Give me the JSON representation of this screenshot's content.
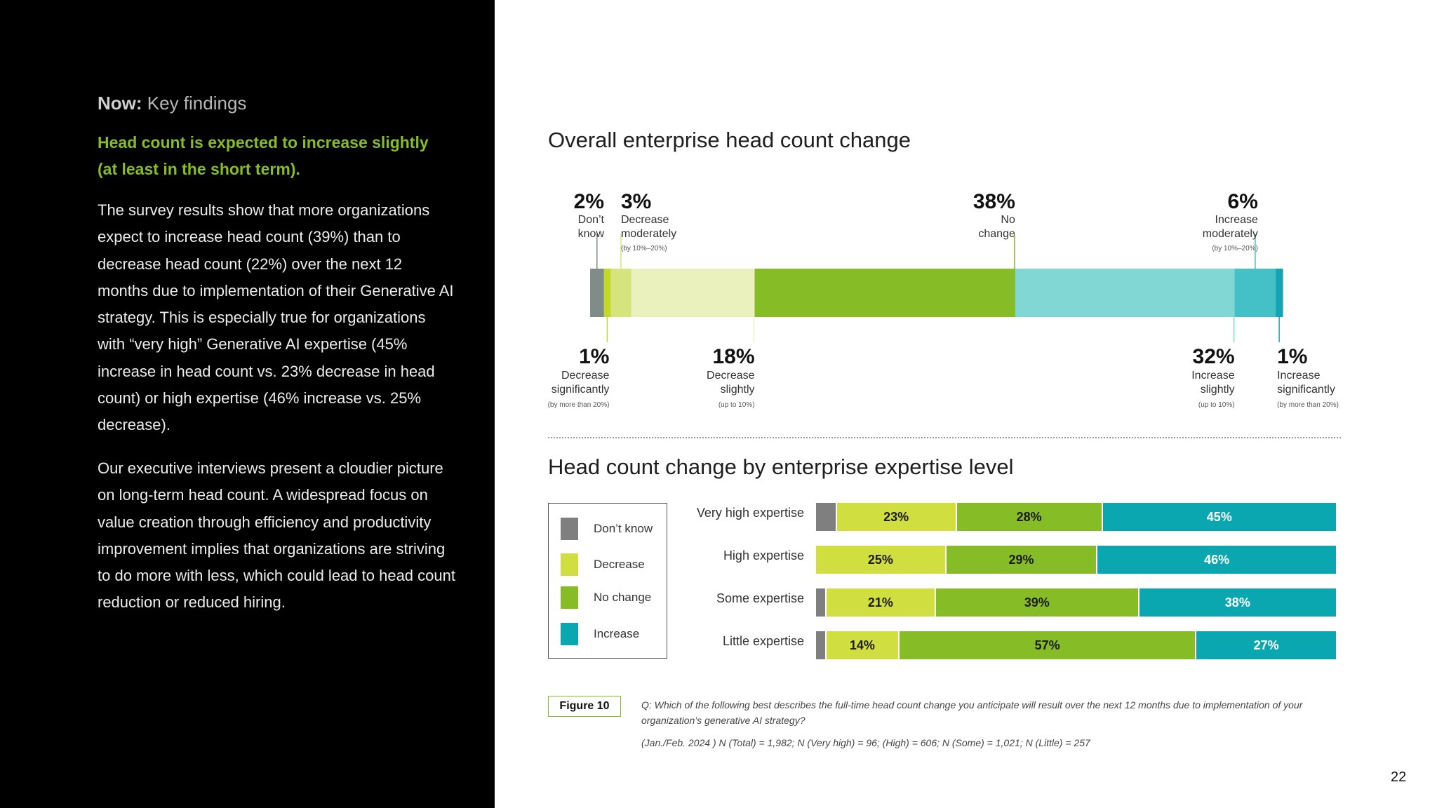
{
  "left_panel": {
    "kicker_bold": "Now:",
    "kicker_rest": " Key findings",
    "headline": "Head count is expected to increase slightly (at least in the short term).",
    "paragraph1": "The survey results show that more organizations expect to increase head count (39%) than to decrease head count (22%) over the next 12 months due to implementation of their Generative AI strategy. This is especially true for organizations with “very high” Generative AI expertise (45% increase in head count vs. 23% decrease in head count) or high expertise (46% increase vs. 25% decrease).",
    "paragraph2": "Our executive interviews present a cloudier picture on long-term head count. A widespread focus on value creation through efficiency and productivity improvement implies that organizations are striving to do more with less, which could lead to head count reduction or reduced hiring."
  },
  "figure": {
    "tag": "Figure 10",
    "question": "Q: Which of the following best describes the full-time head count change you anticipate will result over the next 12 months due to implementation of your organization’s generative AI strategy?",
    "sample": "(Jan./Feb. 2024 ) N (Total) = 1,982; N (Very high) = 96; (High) = 606; N (Some) = 1,021; N (Little) = 257"
  },
  "page_number": "22",
  "chart_data": [
    {
      "type": "bar",
      "orientation": "horizontal-stacked-single",
      "title": "Overall enterprise head count change",
      "segments": [
        {
          "key": "dont_know",
          "value": 2,
          "pct": "2%",
          "label": [
            "Don’t",
            "know"
          ],
          "sub": "",
          "color": "#7f8c87",
          "side": "top"
        },
        {
          "key": "dec_sig",
          "value": 1,
          "pct": "1%",
          "label": [
            "Decrease",
            "significantly"
          ],
          "sub": "(by more than 20%)",
          "color": "#c5d82a",
          "side": "bottom"
        },
        {
          "key": "dec_mod",
          "value": 3,
          "pct": "3%",
          "label": [
            "Decrease",
            "moderately"
          ],
          "sub": "(by 10%–20%)",
          "color": "#d6e47e",
          "side": "top"
        },
        {
          "key": "dec_slight",
          "value": 18,
          "pct": "18%",
          "label": [
            "Decrease",
            "slightly"
          ],
          "sub": "(up to 10%)",
          "color": "#ebf1bd",
          "side": "bottom"
        },
        {
          "key": "no_change",
          "value": 38,
          "pct": "38%",
          "label": [
            "No",
            "change"
          ],
          "sub": "",
          "color": "#86bc25",
          "side": "top"
        },
        {
          "key": "inc_slight",
          "value": 32,
          "pct": "32%",
          "label": [
            "Increase",
            "slightly"
          ],
          "sub": "(up to 10%)",
          "color": "#80d7d4",
          "side": "bottom"
        },
        {
          "key": "inc_mod",
          "value": 6,
          "pct": "6%",
          "label": [
            "Increase",
            "moderately"
          ],
          "sub": "(by 10%–20%)",
          "color": "#44c1c6",
          "side": "top"
        },
        {
          "key": "inc_sig",
          "value": 1,
          "pct": "1%",
          "label": [
            "Increase",
            "significantly"
          ],
          "sub": "(by more than 20%)",
          "color": "#16a4b2",
          "side": "bottom"
        }
      ]
    },
    {
      "type": "bar",
      "orientation": "horizontal-stacked",
      "title": "Head count change by enterprise expertise level",
      "legend": [
        {
          "name": "Don’t know",
          "color": "#7f7f7f"
        },
        {
          "name": "Decrease",
          "color": "#d0de3f"
        },
        {
          "name": "No change",
          "color": "#86bc25"
        },
        {
          "name": "Increase",
          "color": "#0aa7b0"
        }
      ],
      "categories": [
        "Very high expertise",
        "High expertise",
        "Some expertise",
        "Little expertise"
      ],
      "series": [
        {
          "name": "Don’t know",
          "values": [
            4,
            0,
            2,
            2
          ],
          "labels": [
            "",
            "",
            "",
            ""
          ]
        },
        {
          "name": "Decrease",
          "values": [
            23,
            25,
            21,
            14
          ],
          "labels": [
            "23%",
            "25%",
            "21%",
            "14%"
          ]
        },
        {
          "name": "No change",
          "values": [
            28,
            29,
            39,
            57
          ],
          "labels": [
            "28%",
            "29%",
            "39%",
            "57%"
          ]
        },
        {
          "name": "Increase",
          "values": [
            45,
            46,
            38,
            27
          ],
          "labels": [
            "45%",
            "46%",
            "38%",
            "27%"
          ]
        }
      ]
    }
  ]
}
